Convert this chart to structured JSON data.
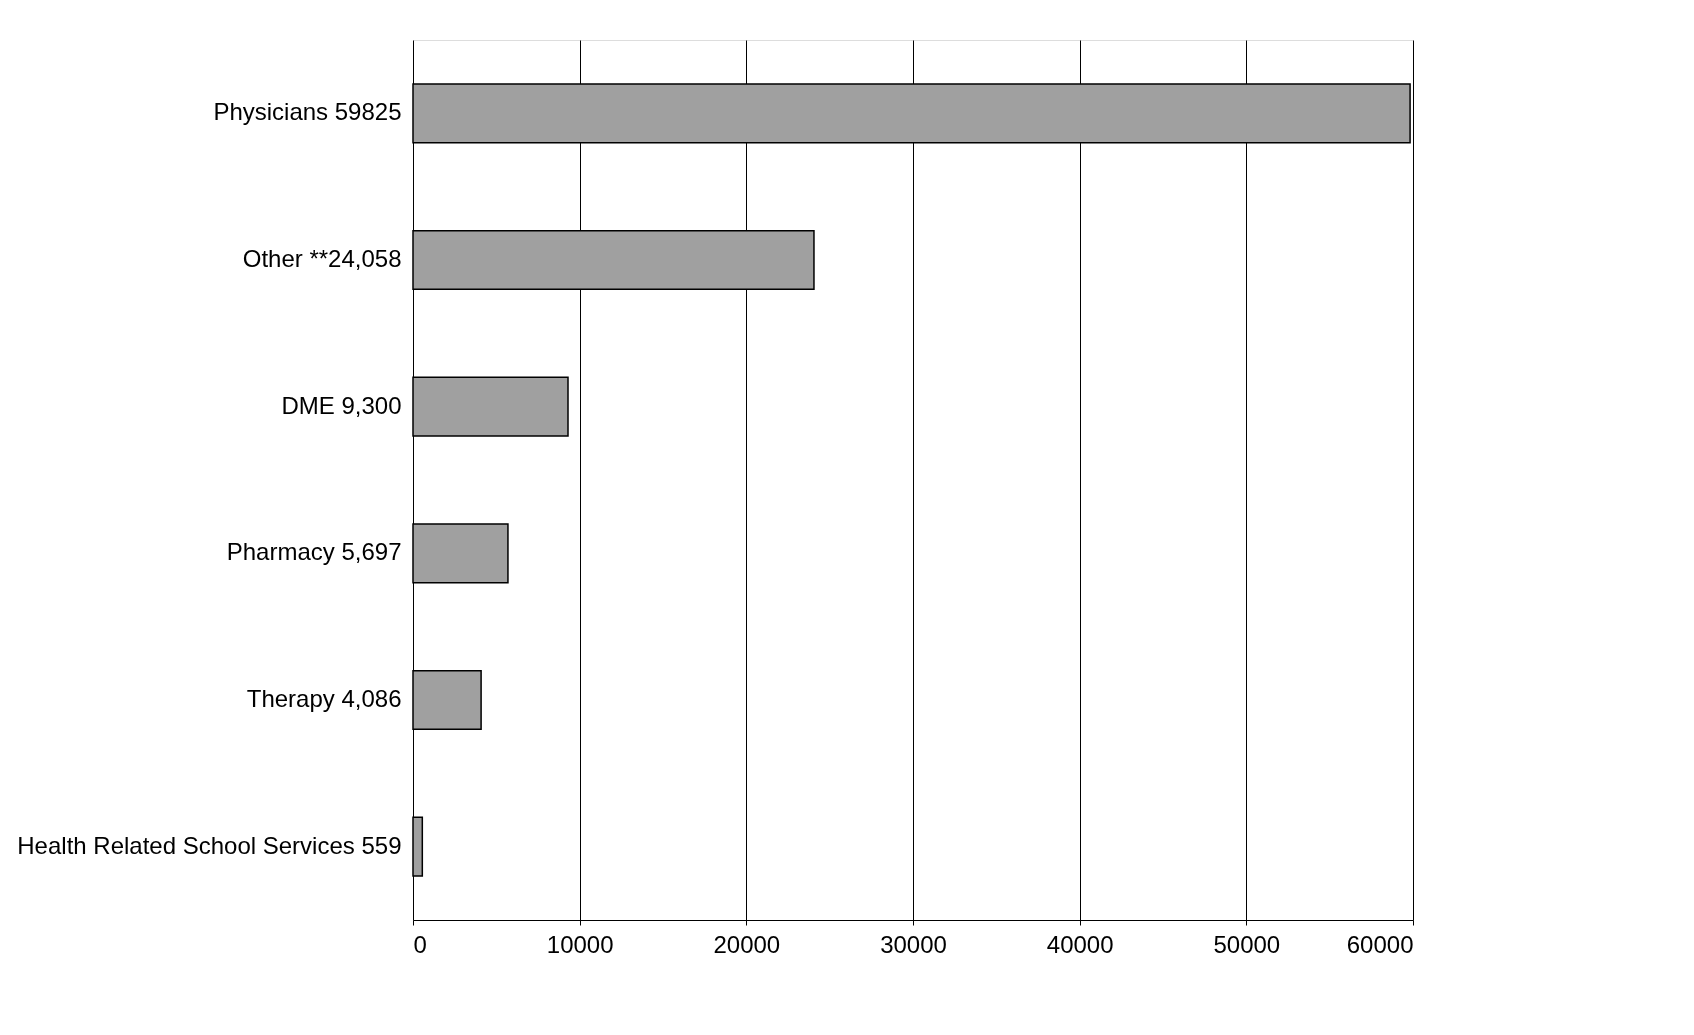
{
  "chart_data": {
    "type": "bar",
    "orientation": "horizontal",
    "categories": [
      "Physicians 59825",
      "Other **24,058",
      "DME 9,300",
      "Pharmacy 5,697",
      "Therapy 4,086",
      "Health Related School Services  559"
    ],
    "values": [
      59825,
      24058,
      9300,
      5697,
      4086,
      559
    ],
    "color": "#a0a0a0",
    "xlim": [
      0,
      60000
    ],
    "xticks": [
      0,
      10000,
      20000,
      30000,
      40000,
      50000,
      60000
    ],
    "grid": "x"
  }
}
